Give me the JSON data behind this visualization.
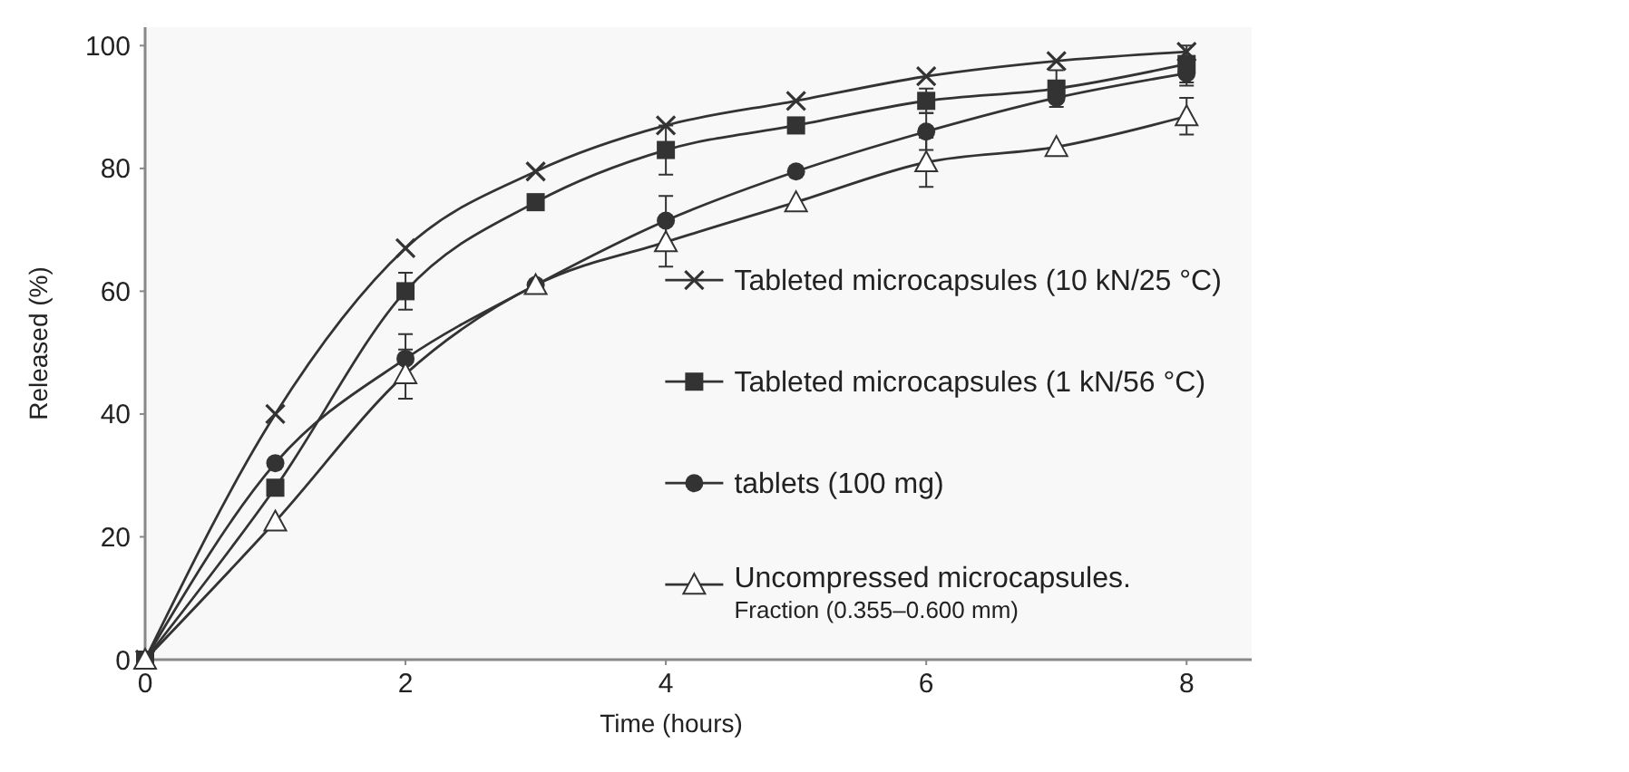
{
  "chart_data": {
    "type": "line",
    "xlabel": "Time (hours)",
    "ylabel": "Released (%)",
    "x": [
      0,
      1,
      2,
      3,
      4,
      5,
      6,
      7,
      8
    ],
    "xlim": [
      0,
      8.5
    ],
    "xticks": [
      0,
      2,
      4,
      6,
      8
    ],
    "ylim": [
      0,
      103
    ],
    "yticks": [
      0,
      20,
      40,
      60,
      80,
      100
    ],
    "grid": false,
    "legend": "right",
    "line_style": "solid",
    "series": [
      {
        "name": "Tableted microcapsules (10 kN/25 °C)",
        "color": "#333333",
        "marker": "cross",
        "values": [
          0,
          40,
          67,
          79.5,
          87,
          91,
          95,
          97.5,
          99
        ]
      },
      {
        "name": "Tableted microcapsules (1 kN/56 °C)",
        "color": "#333333",
        "marker": "square",
        "values": [
          0,
          28,
          60,
          74.5,
          83,
          87,
          91,
          93,
          97
        ],
        "errors": [
          null,
          null,
          3,
          null,
          4,
          null,
          2,
          3,
          3
        ]
      },
      {
        "name": "tablets (100 mg)",
        "color": "#333333",
        "marker": "circle",
        "values": [
          0,
          32,
          49,
          61,
          71.5,
          79.5,
          86,
          91.5,
          95.5
        ],
        "errors": [
          null,
          null,
          4,
          null,
          4,
          null,
          3,
          null,
          2
        ]
      },
      {
        "name": "Uncompressed microcapsules.\nFraction (0.355–0.600 mm)",
        "color": "#333333",
        "marker": "triangle",
        "values": [
          0,
          22.5,
          46.5,
          61,
          68,
          74.5,
          81,
          83.5,
          88.5
        ],
        "errors": [
          null,
          null,
          4,
          null,
          4,
          null,
          4,
          null,
          3
        ]
      }
    ]
  }
}
